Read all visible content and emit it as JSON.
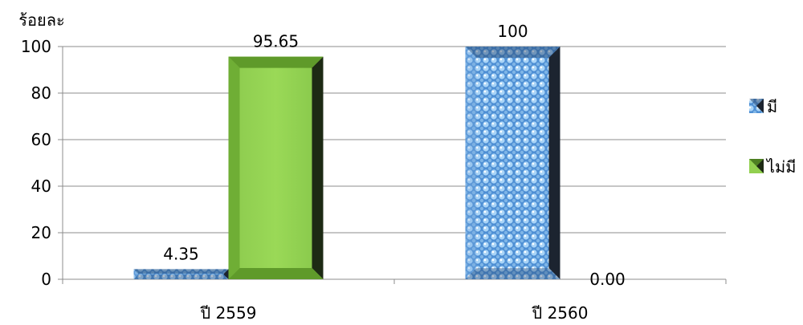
{
  "chart_data": {
    "type": "bar",
    "ylabel": "ร้อยละ",
    "xlabel": "",
    "ylim": [
      0,
      100
    ],
    "yticks": [
      0,
      20,
      40,
      60,
      80,
      100
    ],
    "categories": [
      "ปี 2559",
      "ปี 2560"
    ],
    "series": [
      {
        "name": "มี",
        "values": [
          4.35,
          100
        ],
        "labels": [
          "4.35",
          "100"
        ],
        "color": "#6fa8dc"
      },
      {
        "name": "ไม่มี",
        "values": [
          95.65,
          0
        ],
        "labels": [
          "95.65",
          "0.00"
        ],
        "color": "#92d050"
      }
    ],
    "grid": true,
    "legend_position": "right"
  }
}
